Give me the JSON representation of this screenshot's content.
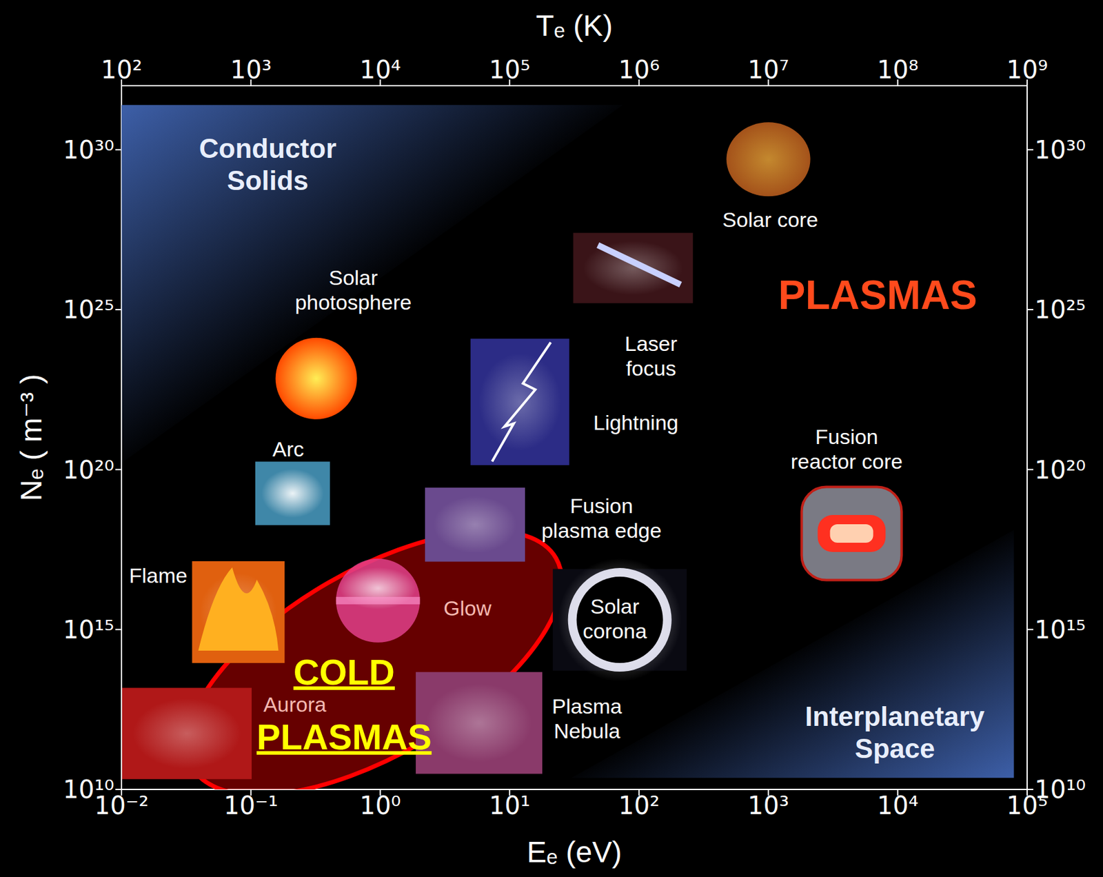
{
  "chart_data": {
    "type": "scatter",
    "x_label": "Eₑ (eV)",
    "x2_label": "Tₑ (K)",
    "y_label": "Nₑ ( m⁻³ )",
    "log": true,
    "xlim": [
      0.01,
      100000
    ],
    "xticks": [
      {
        "value": 0.01,
        "label": "10⁻²"
      },
      {
        "value": 0.1,
        "label": "10⁻¹"
      },
      {
        "value": 1,
        "label": "10⁰"
      },
      {
        "value": 10,
        "label": "10¹"
      },
      {
        "value": 100,
        "label": "10²"
      },
      {
        "value": 1000,
        "label": "10³"
      },
      {
        "value": 10000,
        "label": "10⁴"
      },
      {
        "value": 100000,
        "label": "10⁵"
      }
    ],
    "x2lim": [
      100,
      1000000000
    ],
    "x2ticks": [
      {
        "value": 100,
        "label": "10²"
      },
      {
        "value": 1000,
        "label": "10³"
      },
      {
        "value": 10000,
        "label": "10⁴"
      },
      {
        "value": 100000,
        "label": "10⁵"
      },
      {
        "value": 1000000,
        "label": "10⁶"
      },
      {
        "value": 10000000,
        "label": "10⁷"
      },
      {
        "value": 100000000,
        "label": "10⁸"
      },
      {
        "value": 1000000000,
        "label": "10⁹"
      }
    ],
    "ylim": [
      10000000000.0,
      1e+32
    ],
    "yticks": [
      {
        "value": 10000000000.0,
        "label": "10¹⁰"
      },
      {
        "value": 1000000000000000.0,
        "label": "10¹⁵"
      },
      {
        "value": 1e+20,
        "label": "10²⁰"
      },
      {
        "value": 1e+25,
        "label": "10²⁵"
      },
      {
        "value": 1e+30,
        "label": "10³⁰"
      }
    ],
    "y2lim": [
      10000000000.0,
      1e+32
    ],
    "y2ticks": [
      {
        "value": 10000000000.0,
        "label": "10¹⁰"
      },
      {
        "value": 1000000000000000.0,
        "label": "10¹⁵"
      },
      {
        "value": 1e+20,
        "label": "10²⁰"
      },
      {
        "value": 1e+25,
        "label": "10²⁵"
      },
      {
        "value": 1e+30,
        "label": "10³⁰"
      }
    ],
    "points": [
      {
        "label": "Solar core",
        "x": 1000,
        "y": 5e+29,
        "color": "#a4521a"
      },
      {
        "label": "Solar photosphere",
        "x": 0.32,
        "y": 7e+22,
        "color": "#ff4a00"
      },
      {
        "label": "Laser focus",
        "x": 90,
        "y": 2e+26,
        "color": "#3a1418"
      },
      {
        "label": "Lightning",
        "x": 12,
        "y": 1.3e+22,
        "color": "#2c2c86"
      },
      {
        "label": "Arc",
        "x": 0.21,
        "y": 1.8e+19,
        "color": "#3f87a8"
      },
      {
        "label": "Fusion plasma edge",
        "x": 5.4,
        "y": 1.9e+18,
        "color": "#6a4a8e"
      },
      {
        "label": "Flame",
        "x": 0.08,
        "y": 3500000000000000.0,
        "color": "#e0600f"
      },
      {
        "label": "Glow",
        "x": 0.96,
        "y": 8000000000000000.0,
        "color": "#e0408a"
      },
      {
        "label": "Aurora",
        "x": 0.032,
        "y": 560000000000.0,
        "color": "#b01818"
      },
      {
        "label": "Plasma Nebula",
        "x": 5.8,
        "y": 1200000000000.0,
        "color": "#8a3a6a"
      },
      {
        "label": "Solar corona",
        "x": 71,
        "y": 2000000000000000.0,
        "color": "#d8d8e8"
      },
      {
        "label": "Fusion reactor core",
        "x": 4400,
        "y": 1e+18,
        "color": "#7a7a84"
      }
    ],
    "regions": [
      {
        "label": "Conductor Solids",
        "x": [
          0.01,
          75,
          0.01
        ],
        "y": [
          2.5e+31,
          2.5e+31,
          1.6e+20
        ],
        "label_x": 0.135,
        "label_y": 3.8e+29,
        "color": "#3d5fa8"
      },
      {
        "label": "Interplanetary Space",
        "x": [
          30,
          79000,
          79000
        ],
        "y": [
          23000000000.0,
          23000000000.0,
          1.3e+18
        ],
        "label_x": 9500,
        "label_y": 660000000000.0,
        "color": "#3d5fa8"
      }
    ],
    "highlight": {
      "label": "COLD PLASMAS",
      "x": 0.9,
      "y": 90000000000000.0,
      "color": "#ff0000"
    },
    "annotations": [
      {
        "text": "PLASMAS",
        "x": 7000,
        "y": 3e+25,
        "color": "#ff4a1c"
      }
    ]
  }
}
